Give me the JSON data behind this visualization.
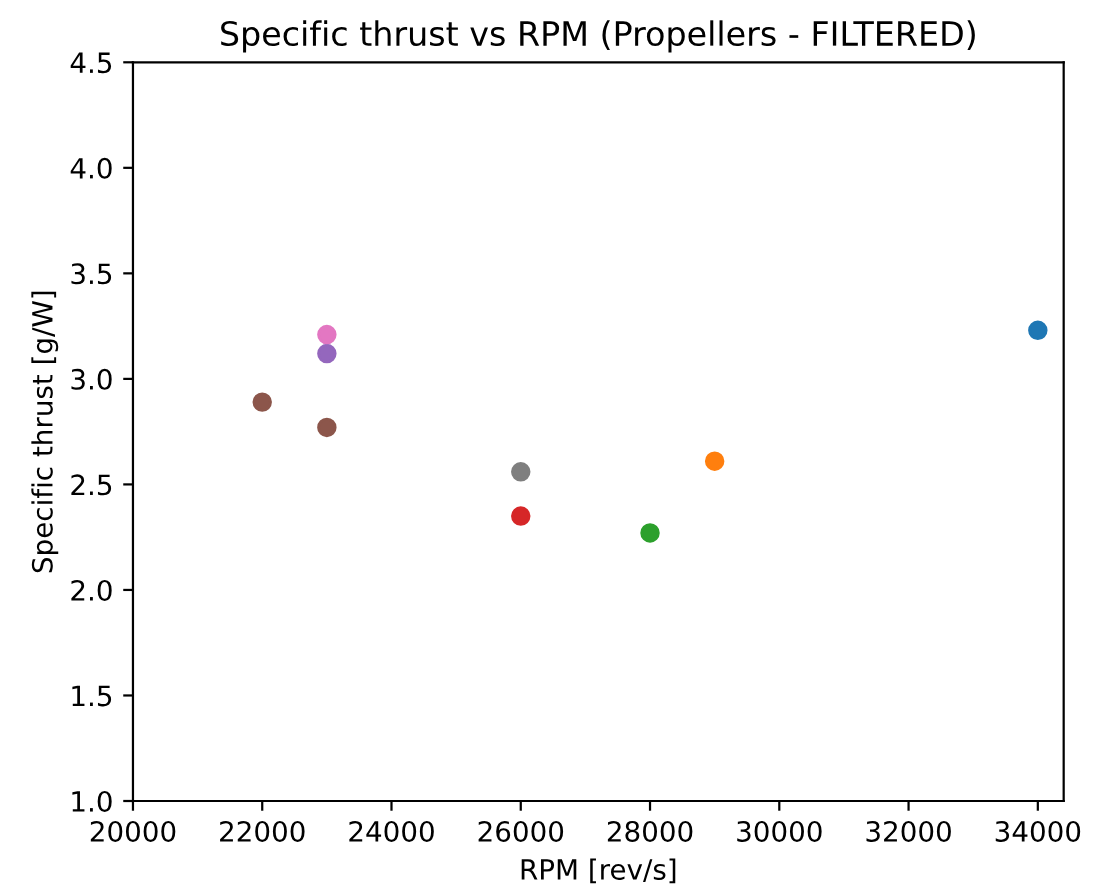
{
  "chart_data": {
    "type": "scatter",
    "title": "Specific thrust vs RPM (Propellers - FILTERED)",
    "xlabel": "RPM [rev/s]",
    "ylabel": "Specific thrust [g/W]",
    "x": [
      34000,
      29000,
      28000,
      26000,
      23000,
      22000,
      23000,
      23000,
      26000
    ],
    "values": [
      3.23,
      2.61,
      2.27,
      2.35,
      3.12,
      2.89,
      3.21,
      2.77,
      2.56
    ],
    "colors": [
      "#1f77b4",
      "#ff7f0e",
      "#2ca02c",
      "#d62728",
      "#9467bd",
      "#8c564b",
      "#e377c2",
      "#8c564b",
      "#7f7f7f"
    ],
    "xlim": [
      20000,
      34400
    ],
    "xticks": [
      20000,
      22000,
      24000,
      26000,
      28000,
      30000,
      32000,
      34000
    ],
    "ylim": [
      1.0,
      4.5
    ],
    "yticks": [
      {
        "value": 1.0,
        "label": "1.0"
      },
      {
        "value": 1.5,
        "label": "1.5"
      },
      {
        "value": 2.0,
        "label": "2.0"
      },
      {
        "value": 2.5,
        "label": "2.5"
      },
      {
        "value": 3.0,
        "label": "3.0"
      },
      {
        "value": 3.5,
        "label": "3.5"
      },
      {
        "value": 4.0,
        "label": "4.0"
      },
      {
        "value": 4.5,
        "label": "4.5"
      }
    ],
    "marker": "circle",
    "grid": false,
    "legend": false
  }
}
